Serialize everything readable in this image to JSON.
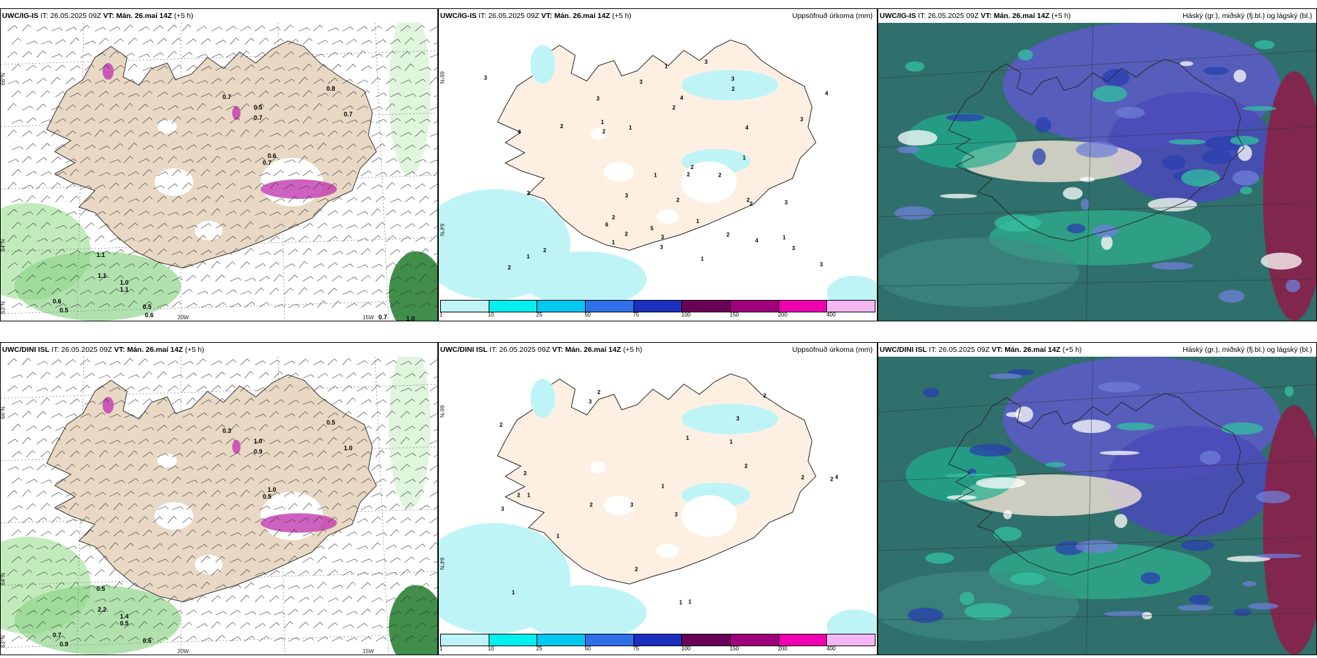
{
  "panels": [
    {
      "model": "UWC/IG-IS",
      "it_label": "IT:",
      "it_value": "26.05.2025 09Z",
      "vt_label": "VT:",
      "vt_value": "Mán. 26.maí 14Z",
      "lead": "(+5 h)",
      "right_title": "",
      "ticks": {
        "lat66": "66°N",
        "lat64": "64°N",
        "lat63": "63°N",
        "lon20": "20W",
        "lon15": "15W"
      },
      "values": [
        "0.7",
        "0.5",
        "0.7",
        "0.8",
        "0.7",
        "0.6",
        "0.7",
        "1.1",
        "1.1",
        "1.0",
        "1.1",
        "0.6",
        "0.5",
        "0.5",
        "0.6",
        "0.7",
        "1.0"
      ]
    },
    {
      "model": "UWC/IG-IS",
      "it_label": "IT:",
      "it_value": "26.05.2025 09Z",
      "vt_label": "VT:",
      "vt_value": "Mán. 26.maí 14Z",
      "lead": "(+5 h)",
      "right_title": "Uppsöfnuð úrkoma (mm)",
      "ticks": {
        "lat66": "66°N",
        "lat64": "64°N"
      },
      "values": [
        "1",
        "3",
        "2",
        "2",
        "3",
        "3",
        "1",
        "3",
        "4",
        "6",
        "3",
        "2",
        "2",
        "1",
        "2",
        "1",
        "2",
        "2",
        "1",
        "4",
        "3",
        "2",
        "3",
        "2",
        "2",
        "2",
        "1",
        "2",
        "3",
        "1",
        "3",
        "3",
        "4",
        "2",
        "2",
        "1",
        "3",
        "4",
        "4",
        "5",
        "2",
        "2",
        "3",
        "1",
        "1"
      ]
    },
    {
      "model": "UWC/IG-IS",
      "it_label": "IT:",
      "it_value": "26.05.2025 09Z",
      "vt_label": "VT:",
      "vt_value": "Mán. 26.maí 14Z",
      "lead": "(+5 h)",
      "right_title": "Háský (gr.), miðský (fj.bl.) og lágský (bl.)"
    },
    {
      "model": "UWC/DINI ISL",
      "it_label": "IT:",
      "it_value": "26.05.2025 09Z",
      "vt_label": "VT:",
      "vt_value": "Mán. 26.maí 14Z",
      "lead": "(+5 h)",
      "right_title": "",
      "ticks": {
        "lat66": "66°N",
        "lat64": "64°N",
        "lat63": "63°N",
        "lon20": "20W",
        "lon15": "15W"
      },
      "values": [
        "0.3",
        "1.0",
        "0.9",
        "0.5",
        "1.0",
        "1.0",
        "0.5",
        "0.5",
        "2.2",
        "1.4",
        "0.5",
        "0.7",
        "0.9",
        "0.6"
      ]
    },
    {
      "model": "UWC/DINI ISL",
      "it_label": "IT:",
      "it_value": "26.05.2025 09Z",
      "vt_label": "VT:",
      "vt_value": "Mán. 26.maí 14Z",
      "lead": "(+5 h)",
      "right_title": "Uppsöfnuð úrkoma (mm)",
      "ticks": {
        "lat66": "66°N",
        "lat64": "64°N"
      },
      "values": [
        "2",
        "3",
        "2",
        "3",
        "3",
        "1",
        "2",
        "1",
        "3",
        "1",
        "1",
        "1",
        "3",
        "2",
        "1",
        "1",
        "2",
        "2",
        "2",
        "1",
        "2",
        "2",
        "4",
        "2"
      ]
    },
    {
      "model": "UWC/DINI ISL",
      "it_label": "IT:",
      "it_value": "26.05.2025 09Z",
      "vt_label": "VT:",
      "vt_value": "Mán. 26.maí 14Z",
      "lead": "(+5 h)",
      "right_title": "Háský (gr.), miðský (fj.bl.) og lágský (bl.)"
    }
  ],
  "colorbar": {
    "colors": [
      "#bff4f7",
      "#00f0f0",
      "#00c8f0",
      "#2f6fe8",
      "#1c2fbf",
      "#6b0058",
      "#a0007c",
      "#f000b0",
      "#f4b7f4"
    ],
    "labels": [
      "1",
      "10",
      "25",
      "50",
      "75",
      "100",
      "150",
      "200",
      "400"
    ]
  },
  "land_color": "#e8d8c4",
  "precip_land_color": "#fdf0e2"
}
